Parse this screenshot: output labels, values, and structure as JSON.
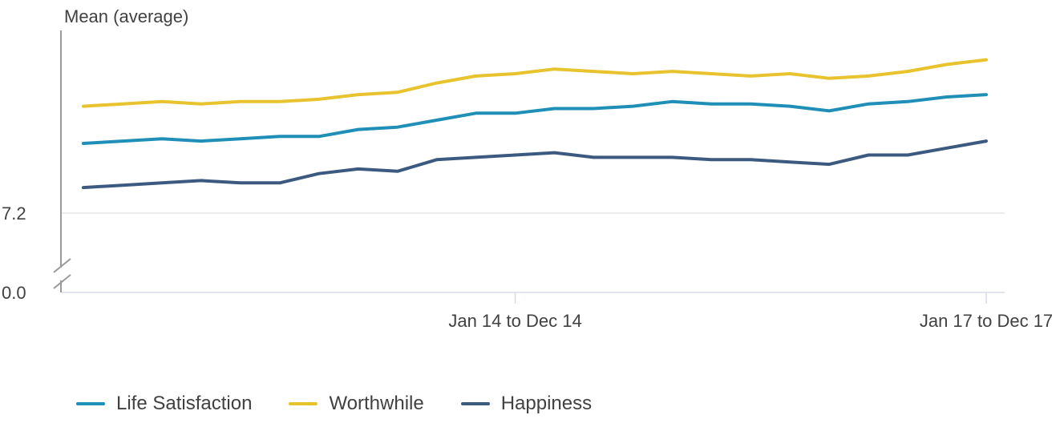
{
  "chart_data": {
    "type": "line",
    "ylabel": "Mean (average)",
    "y_ticks": [
      "0.0",
      "7.2"
    ],
    "x_ticks": [
      "Jan 14 to Dec 14",
      "Jan 17 to Dec 17"
    ],
    "x_tick_indices": [
      11,
      23
    ],
    "axis_break": true,
    "grid": "horizontal",
    "legend_position": "bottom-left",
    "series": [
      {
        "name": "Life Satisfaction",
        "color": "#1f8fb8",
        "values": [
          7.5,
          7.51,
          7.52,
          7.51,
          7.52,
          7.53,
          7.53,
          7.56,
          7.57,
          7.6,
          7.63,
          7.63,
          7.65,
          7.65,
          7.66,
          7.68,
          7.67,
          7.67,
          7.66,
          7.64,
          7.67,
          7.68,
          7.7,
          7.71
        ]
      },
      {
        "name": "Worthwhile",
        "color": "#e8c32e",
        "values": [
          7.66,
          7.67,
          7.68,
          7.67,
          7.68,
          7.68,
          7.69,
          7.71,
          7.72,
          7.76,
          7.79,
          7.8,
          7.82,
          7.81,
          7.8,
          7.81,
          7.8,
          7.79,
          7.8,
          7.78,
          7.79,
          7.81,
          7.84,
          7.86
        ]
      },
      {
        "name": "Happiness",
        "color": "#3c5a80",
        "values": [
          7.31,
          7.32,
          7.33,
          7.34,
          7.33,
          7.33,
          7.37,
          7.39,
          7.38,
          7.43,
          7.44,
          7.45,
          7.46,
          7.44,
          7.44,
          7.44,
          7.43,
          7.43,
          7.42,
          7.41,
          7.45,
          7.45,
          7.48,
          7.51
        ]
      }
    ]
  }
}
